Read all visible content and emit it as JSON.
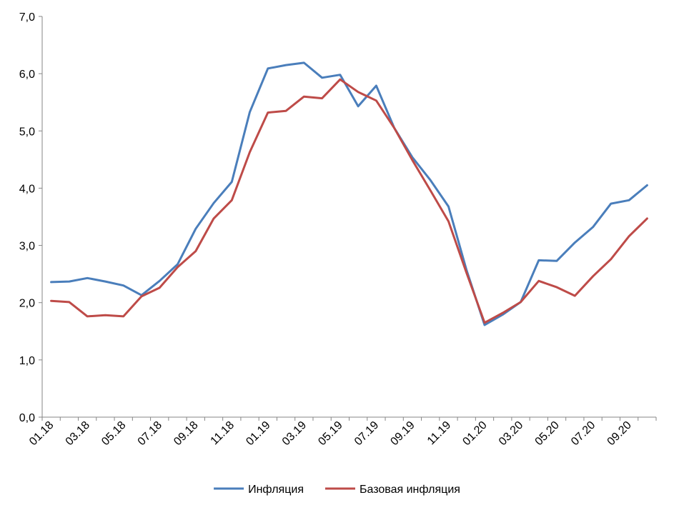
{
  "chart_data": {
    "type": "line",
    "title": "",
    "xlabel": "",
    "ylabel": "",
    "ylim": [
      0,
      7
    ],
    "y_ticks": [
      "0,0",
      "1,0",
      "2,0",
      "3,0",
      "4,0",
      "5,0",
      "6,0",
      "7,0"
    ],
    "grid": false,
    "legend_position": "bottom",
    "categories": [
      "01.18",
      "02.18",
      "03.18",
      "04.18",
      "05.18",
      "06.18",
      "07.18",
      "08.18",
      "09.18",
      "10.18",
      "11.18",
      "12.18",
      "01.19",
      "02.19",
      "03.19",
      "04.19",
      "05.19",
      "06.19",
      "07.19",
      "08.19",
      "09.19",
      "10.19",
      "11.19",
      "12.19",
      "01.20",
      "02.20",
      "03.20",
      "04.20",
      "05.20",
      "06.20",
      "07.20",
      "08.20",
      "09.20",
      "10.20"
    ],
    "x_tick_labels": [
      "01.18",
      "03.18",
      "05.18",
      "07.18",
      "09.18",
      "11.18",
      "01.19",
      "03.19",
      "05.19",
      "07.19",
      "09.19",
      "11.19",
      "01.20",
      "03.20",
      "05.20",
      "07.20",
      "09.20"
    ],
    "series": [
      {
        "name": "Инфляция",
        "color": "#4a7ebb",
        "values": [
          2.36,
          2.37,
          2.43,
          2.37,
          2.3,
          2.13,
          2.38,
          2.67,
          3.29,
          3.74,
          4.11,
          5.33,
          6.09,
          6.15,
          6.19,
          5.93,
          5.98,
          5.43,
          5.79,
          5.05,
          4.54,
          4.14,
          3.68,
          2.57,
          1.61,
          1.79,
          2.01,
          2.74,
          2.73,
          3.05,
          3.32,
          3.73,
          3.79,
          4.05
        ]
      },
      {
        "name": "Базовая инфляция",
        "color": "#be4b48",
        "values": [
          2.03,
          2.01,
          1.76,
          1.78,
          1.76,
          2.11,
          2.26,
          2.62,
          2.9,
          3.47,
          3.79,
          4.63,
          5.32,
          5.35,
          5.6,
          5.57,
          5.9,
          5.68,
          5.53,
          5.05,
          4.49,
          3.96,
          3.42,
          2.52,
          1.65,
          1.82,
          2.01,
          2.38,
          2.27,
          2.12,
          2.46,
          2.76,
          3.16,
          3.47
        ]
      }
    ]
  }
}
